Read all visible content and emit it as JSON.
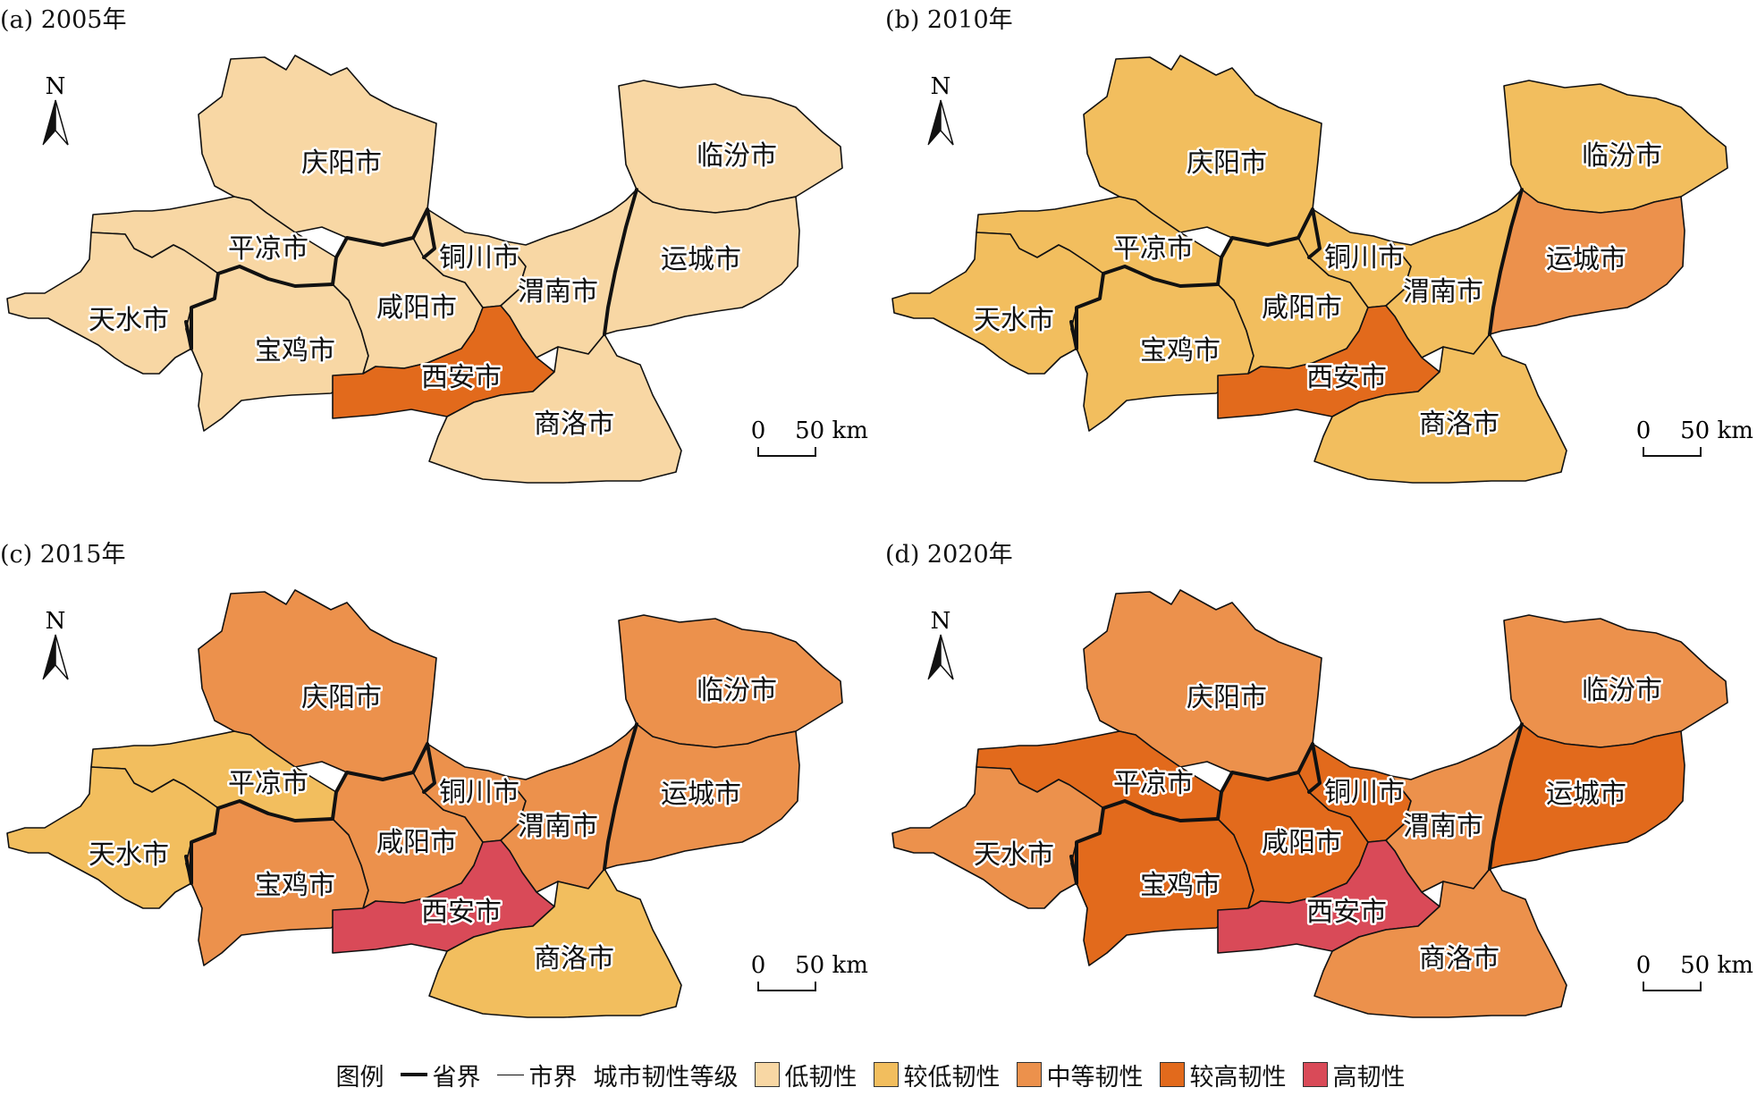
{
  "panels": [
    {
      "id": "a",
      "title": "(a) 2005年",
      "levels": {
        "qingyang": 0,
        "pingliang": 0,
        "tianshui": 0,
        "baoji": 0,
        "xianyang": 0,
        "tongchuan": 0,
        "weinan": 0,
        "xian": 3,
        "shangluo": 0,
        "linfen": 0,
        "yuncheng": 0
      }
    },
    {
      "id": "b",
      "title": "(b) 2010年",
      "levels": {
        "qingyang": 1,
        "pingliang": 1,
        "tianshui": 1,
        "baoji": 1,
        "xianyang": 1,
        "tongchuan": 1,
        "weinan": 1,
        "xian": 3,
        "shangluo": 1,
        "linfen": 1,
        "yuncheng": 2
      }
    },
    {
      "id": "c",
      "title": "(c) 2015年",
      "levels": {
        "qingyang": 2,
        "pingliang": 1,
        "tianshui": 1,
        "baoji": 2,
        "xianyang": 2,
        "tongchuan": 2,
        "weinan": 2,
        "xian": 4,
        "shangluo": 1,
        "linfen": 2,
        "yuncheng": 2
      }
    },
    {
      "id": "d",
      "title": "(d) 2020年",
      "levels": {
        "qingyang": 2,
        "pingliang": 3,
        "tianshui": 2,
        "baoji": 3,
        "xianyang": 3,
        "tongchuan": 3,
        "weinan": 2,
        "xian": 4,
        "shangluo": 2,
        "linfen": 2,
        "yuncheng": 3
      }
    }
  ],
  "cities": {
    "qingyang": "庆阳市",
    "pingliang": "平凉市",
    "tianshui": "天水市",
    "baoji": "宝鸡市",
    "xianyang": "咸阳市",
    "tongchuan": "铜川市",
    "weinan": "渭南市",
    "xian": "西安市",
    "shangluo": "商洛市",
    "linfen": "临汾市",
    "yuncheng": "运城市"
  },
  "north_label": "N",
  "scale_bar": {
    "zero": "0",
    "value": "50 km"
  },
  "legend": {
    "title": "图例",
    "province_boundary": "省界",
    "city_boundary": "市界",
    "level_title": "城市韧性等级",
    "levels": [
      {
        "label": "低韧性",
        "color": "#f8d7a4"
      },
      {
        "label": "较低韧性",
        "color": "#f2be5e"
      },
      {
        "label": "中等韧性",
        "color": "#ec914c"
      },
      {
        "label": "较高韧性",
        "color": "#e26a1c"
      },
      {
        "label": "高韧性",
        "color": "#d94a58"
      }
    ]
  }
}
